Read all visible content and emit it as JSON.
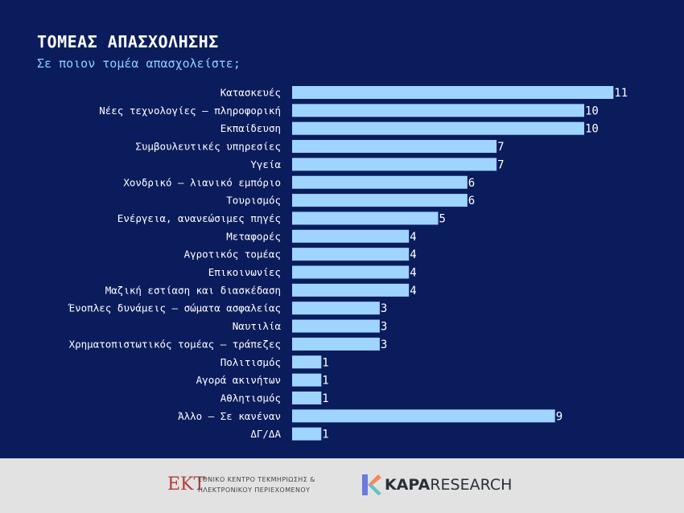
{
  "title": "ΤΟΜΕΑΣ ΑΠΑΣΧΟΛΗΣΗΣ",
  "subtitle": "Σε ποιον τομέα απασχολείστε;",
  "colors": {
    "background": "#0b1c5c",
    "bar": "#9fd4ff",
    "text": "#ffffff",
    "subtitle": "#8ed1ff",
    "footer": "#e2e2e2"
  },
  "chart_data": {
    "type": "bar",
    "orientation": "horizontal",
    "categories": [
      "Κατασκευές",
      "Νέες τεχνολογίες – πληροφορική",
      "Εκπαίδευση",
      "Συμβουλευτικές υπηρεσίες",
      "Υγεία",
      "Χονδρικό – λιανικό εμπόριο",
      "Τουρισμός",
      "Ενέργεια, ανανεώσιμες πηγές",
      "Μεταφορές",
      "Αγροτικός τομέας",
      "Επικοινωνίες",
      "Μαζική εστίαση και διασκέδαση",
      "Ένοπλες δυνάμεις – σώματα ασφαλείας",
      "Ναυτιλία",
      "Χρηματοπιστωτικός τομέας – τράπεζες",
      "Πολιτισμός",
      "Αγορά ακινήτων",
      "Αθλητισμός",
      "Άλλο – Σε κανέναν",
      "ΔΓ/ΔΑ"
    ],
    "values": [
      11,
      10,
      10,
      7,
      7,
      6,
      6,
      5,
      4,
      4,
      4,
      4,
      3,
      3,
      3,
      1,
      1,
      1,
      9,
      1
    ],
    "data_labels": true,
    "grid": false
  },
  "footer": {
    "ekt_mark": "ΕΚΤ",
    "ekt_line1": "ΕΘΝΙΚΟ ΚΕΝΤΡΟ ΤΕΚΜΗΡΙΩΣΗΣ &",
    "ekt_line2": "ΗΛΕΚΤΡΟΝΙΚΟΥ ΠΕΡΙΕΧΟΜΕΝΟΥ",
    "kapa_bold": "KAPA",
    "kapa_rest": "RESEARCH"
  }
}
